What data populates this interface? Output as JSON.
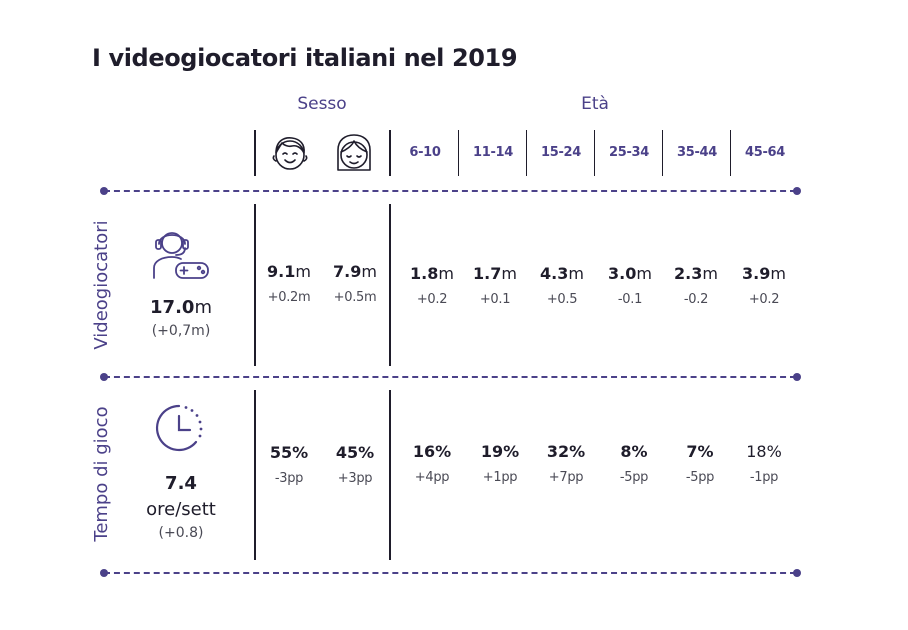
{
  "title": "I videogiocatori italiani nel 2019",
  "headers": {
    "sesso": "Sesso",
    "eta": "Età",
    "male_icon": "male-face-icon",
    "female_icon": "female-face-icon",
    "age_groups": [
      "6-10",
      "11-14",
      "15-24",
      "25-34",
      "35-44",
      "45-64"
    ]
  },
  "rows": {
    "videogiocatori": {
      "label": "Videogiocatori",
      "icon": "gamer-headset-controller-icon",
      "total_value": "17.0",
      "total_unit": "m",
      "total_delta": "(+0,7m)",
      "sesso": [
        {
          "value": "9.1",
          "unit": "m",
          "delta": "+0.2m"
        },
        {
          "value": "7.9",
          "unit": "m",
          "delta": "+0.5m"
        }
      ],
      "eta": [
        {
          "value": "1.8",
          "unit": "m",
          "delta": "+0.2"
        },
        {
          "value": "1.7",
          "unit": "m",
          "delta": "+0.1"
        },
        {
          "value": "4.3",
          "unit": "m",
          "delta": "+0.5"
        },
        {
          "value": "3.0",
          "unit": "m",
          "delta": "-0.1"
        },
        {
          "value": "2.3",
          "unit": "m",
          "delta": "-0.2"
        },
        {
          "value": "3.9",
          "unit": "m",
          "delta": "+0.2"
        }
      ]
    },
    "tempo": {
      "label": "Tempo di gioco",
      "icon": "clock-icon",
      "total_value": "7.4",
      "total_unit": "ore/sett",
      "total_delta": "(+0.8)",
      "sesso": [
        {
          "value": "55%",
          "delta": "-3pp"
        },
        {
          "value": "45%",
          "delta": "+3pp"
        }
      ],
      "eta": [
        {
          "value": "16%",
          "delta": "+4pp"
        },
        {
          "value": "19%",
          "delta": "+1pp"
        },
        {
          "value": "32%",
          "delta": "+7pp"
        },
        {
          "value": "8%",
          "delta": "-5pp"
        },
        {
          "value": "7%",
          "delta": "-5pp"
        },
        {
          "value": "18%",
          "delta": "-1pp"
        }
      ]
    }
  },
  "colors": {
    "accent": "#4b4189",
    "text": "#1f1d2b"
  }
}
